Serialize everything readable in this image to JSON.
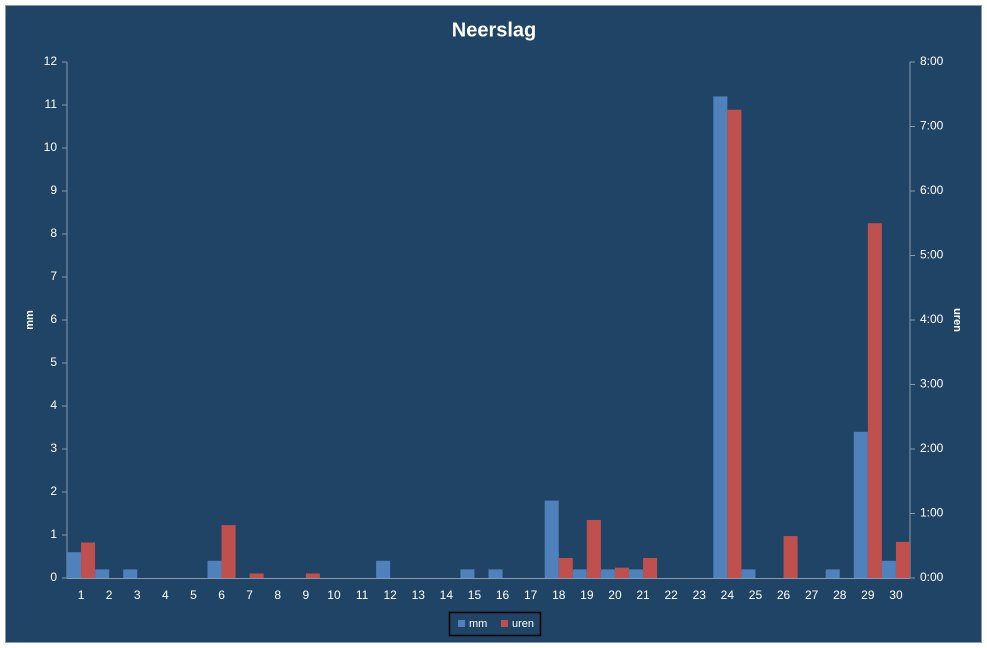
{
  "chart_data": {
    "type": "bar",
    "title": "Neerslag",
    "y_label": "mm",
    "y2_label": "uren",
    "categories": [
      "1",
      "2",
      "3",
      "4",
      "5",
      "6",
      "7",
      "8",
      "9",
      "10",
      "11",
      "12",
      "13",
      "14",
      "15",
      "16",
      "17",
      "18",
      "19",
      "20",
      "21",
      "22",
      "23",
      "24",
      "25",
      "26",
      "27",
      "28",
      "29",
      "30"
    ],
    "series": [
      {
        "name": "mm",
        "color": "#4f81bd",
        "values": [
          0.6,
          0.2,
          0.2,
          0,
          0,
          0.4,
          0,
          0,
          0,
          0,
          0,
          0.4,
          0,
          0,
          0.2,
          0.2,
          0,
          1.8,
          0.2,
          0.2,
          0.2,
          0,
          0,
          11.2,
          0.2,
          0,
          0,
          0.2,
          3.4,
          0.4
        ]
      },
      {
        "name": "uren",
        "color": "#c0504d",
        "axis": "y2",
        "values": [
          0.55,
          0,
          0,
          0,
          0,
          0.82,
          0.07,
          0,
          0.07,
          0,
          0,
          0,
          0,
          0,
          0,
          0,
          0,
          0.31,
          0.9,
          0.16,
          0.31,
          0,
          0,
          7.26,
          0,
          0.65,
          0,
          0,
          5.5,
          0.56
        ]
      }
    ],
    "ylim": [
      0,
      12
    ],
    "yticks": [
      0,
      1,
      2,
      3,
      4,
      5,
      6,
      7,
      8,
      9,
      10,
      11,
      12
    ],
    "y2lim": [
      0,
      8
    ],
    "y2ticks": [
      {
        "value": 0,
        "label": "0:00"
      },
      {
        "value": 1,
        "label": "1:00"
      },
      {
        "value": 2,
        "label": "2:00"
      },
      {
        "value": 3,
        "label": "3:00"
      },
      {
        "value": 4,
        "label": "4:00"
      },
      {
        "value": 5,
        "label": "5:00"
      },
      {
        "value": 6,
        "label": "6:00"
      },
      {
        "value": 7,
        "label": "7:00"
      },
      {
        "value": 8,
        "label": "8:00"
      }
    ],
    "grid": false,
    "legend": "bottom"
  }
}
